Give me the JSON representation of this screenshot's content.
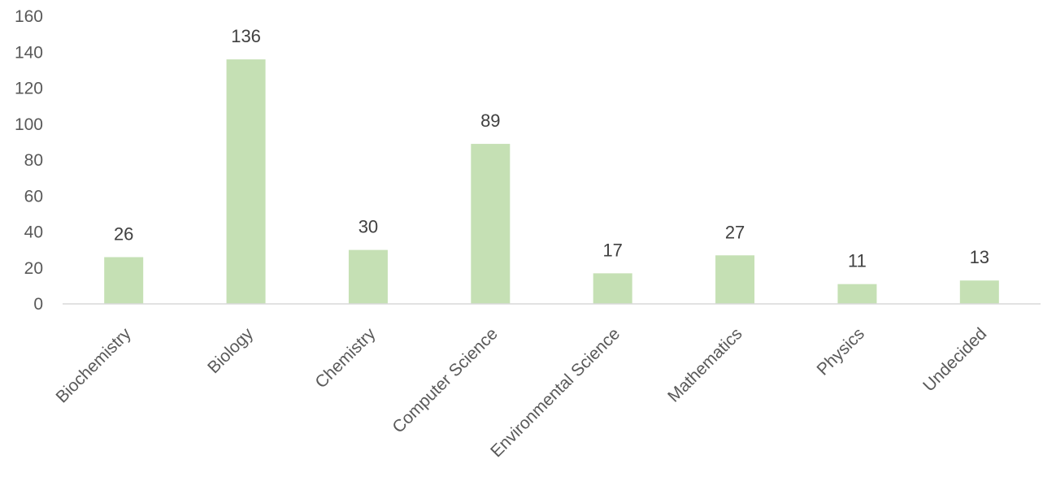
{
  "chart_data": {
    "type": "bar",
    "categories": [
      "Biochemistry",
      "Biology",
      "Chemistry",
      "Computer Science",
      "Environmental Science",
      "Mathematics",
      "Physics",
      "Undecided"
    ],
    "values": [
      26,
      136,
      30,
      89,
      17,
      27,
      11,
      13
    ],
    "data_labels": [
      "26",
      "136",
      "30",
      "89",
      "17",
      "27",
      "11",
      "13"
    ],
    "y_ticks": [
      "0",
      "20",
      "40",
      "60",
      "80",
      "100",
      "120",
      "140",
      "160"
    ],
    "ylim": [
      0,
      160
    ],
    "ytick_step": 20,
    "grid": false,
    "legend": "none",
    "x_label_rotation": "-45",
    "bar_color": "#c5e0b4",
    "axis_color": "#d9d9d9",
    "text_color": "#595959"
  }
}
